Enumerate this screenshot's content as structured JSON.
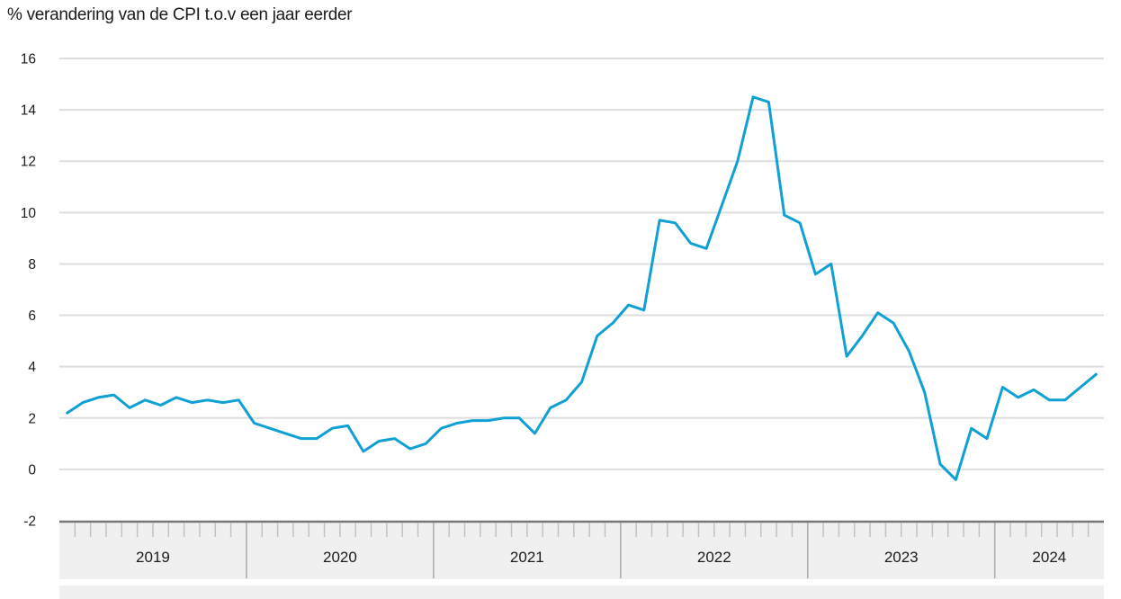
{
  "chart_data": {
    "type": "line",
    "title": "% verandering van de CPI t.o.v een jaar eerder",
    "ylabel": "",
    "xlabel": "",
    "unit": "%",
    "ylim": [
      -2,
      16
    ],
    "yticks": [
      16,
      14,
      12,
      10,
      8,
      6,
      4,
      2,
      0,
      -2
    ],
    "grid": "horizontal",
    "legend_position": "none",
    "x_frequency": "monthly",
    "x_start": "2019-01",
    "x_end": "2024-07",
    "year_labels": [
      "2019",
      "2020",
      "2021",
      "2022",
      "2023",
      "2024"
    ],
    "series": [
      {
        "name": "CPI, % verandering t.o.v een jaar eerder",
        "values": [
          2.2,
          2.6,
          2.8,
          2.9,
          2.4,
          2.7,
          2.5,
          2.8,
          2.6,
          2.7,
          2.6,
          2.7,
          1.8,
          1.6,
          1.4,
          1.2,
          1.2,
          1.6,
          1.7,
          0.7,
          1.1,
          1.2,
          0.8,
          1.0,
          1.6,
          1.8,
          1.9,
          1.9,
          2.0,
          2.0,
          1.4,
          2.4,
          2.7,
          3.4,
          5.2,
          5.7,
          6.4,
          6.2,
          9.7,
          9.6,
          8.8,
          8.6,
          10.3,
          12.0,
          14.5,
          14.3,
          9.9,
          9.6,
          7.6,
          8.0,
          4.4,
          5.2,
          6.1,
          5.7,
          4.6,
          3.0,
          0.2,
          -0.4,
          1.6,
          1.2,
          3.2,
          2.8,
          3.1,
          2.7,
          2.7,
          3.2,
          3.7
        ]
      }
    ],
    "colors": {
      "line": "#0fa0d4",
      "grid": "#dedede",
      "axis_band_fill": "#f0f0f0",
      "axis_band_border": "#777777",
      "month_tick": "#c2c2c2",
      "year_separator": "#a9a9a9",
      "text": "#1c1c1c"
    }
  }
}
